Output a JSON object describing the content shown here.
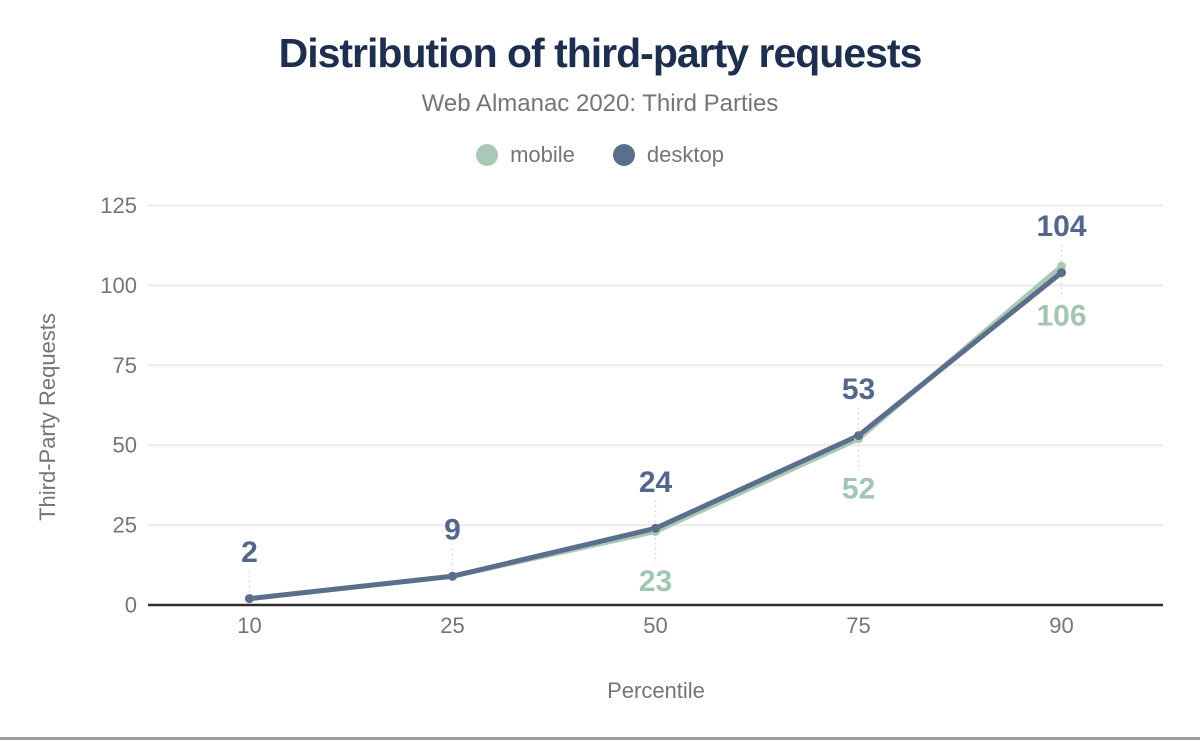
{
  "page": {
    "title": "Distribution of third-party requests",
    "subtitle": "Web Almanac 2020: Third Parties"
  },
  "legend": [
    {
      "label": "mobile",
      "color": "#a9c9b6"
    },
    {
      "label": "desktop",
      "color": "#5b6e8b"
    }
  ],
  "chart_data": {
    "type": "line",
    "title": "Distribution of third-party requests",
    "subtitle": "Web Almanac 2020: Third Parties",
    "xlabel": "Percentile",
    "ylabel": "Third-Party Requests",
    "categories": [
      "10",
      "25",
      "50",
      "75",
      "90"
    ],
    "yticks": [
      0,
      25,
      50,
      75,
      100,
      125
    ],
    "ylim": [
      0,
      125
    ],
    "grid": "horizontal-only",
    "legend_position": "top",
    "series": [
      {
        "name": "mobile",
        "color": "#a9c9b6",
        "label_color": "#a3c6b2",
        "values": [
          2,
          9,
          23,
          52,
          106
        ],
        "data_labels": [
          null,
          null,
          "23",
          "52",
          "106"
        ],
        "label_side": "below"
      },
      {
        "name": "desktop",
        "color": "#5b6e8b",
        "label_color": "#54678a",
        "values": [
          2,
          9,
          24,
          53,
          104
        ],
        "data_labels": [
          "2",
          "9",
          "24",
          "53",
          "104"
        ],
        "label_side": "above"
      }
    ]
  },
  "colors": {
    "title": "#1d2e4e",
    "muted_text": "#757575",
    "gridline": "#ececec",
    "axis_line": "#2e2e2e",
    "leader_line": "#dcdcdc",
    "bottom_rule": "#a0a0a0",
    "background": "#ffffff"
  }
}
